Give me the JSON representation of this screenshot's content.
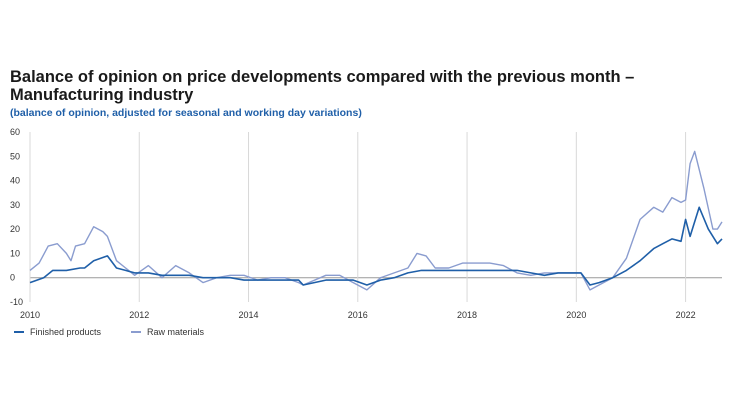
{
  "title": "Balance of opinion on price developments compared with the previous month – Manufacturing industry",
  "subtitle": "(balance of opinion, adjusted for seasonal and working day variations)",
  "chart_data": {
    "type": "line",
    "ylim": [
      -10,
      60
    ],
    "yticks": [
      -10,
      0,
      10,
      20,
      30,
      40,
      50,
      60
    ],
    "xlim": [
      "2010-01",
      "2022-09"
    ],
    "xticks": [
      "2010",
      "2012",
      "2014",
      "2016",
      "2018",
      "2020",
      "2022"
    ],
    "grid": "vertical at year ticks; horizontal zero line",
    "legend_position": "bottom-left",
    "series": [
      {
        "name": "Finished products",
        "color": "#1f5fa8",
        "points": [
          [
            "2010-01",
            -2
          ],
          [
            "2010-04",
            0
          ],
          [
            "2010-06",
            3
          ],
          [
            "2010-09",
            3
          ],
          [
            "2010-12",
            4
          ],
          [
            "2011-01",
            4
          ],
          [
            "2011-03",
            7
          ],
          [
            "2011-06",
            9
          ],
          [
            "2011-08",
            4
          ],
          [
            "2011-10",
            3
          ],
          [
            "2011-12",
            2
          ],
          [
            "2012-03",
            2
          ],
          [
            "2012-06",
            1
          ],
          [
            "2012-09",
            1
          ],
          [
            "2012-12",
            1
          ],
          [
            "2013-03",
            0
          ],
          [
            "2013-06",
            0
          ],
          [
            "2013-09",
            0
          ],
          [
            "2013-12",
            -1
          ],
          [
            "2014-03",
            -1
          ],
          [
            "2014-06",
            -1
          ],
          [
            "2014-09",
            -1
          ],
          [
            "2014-12",
            -1
          ],
          [
            "2015-01",
            -3
          ],
          [
            "2015-06",
            -1
          ],
          [
            "2015-12",
            -1
          ],
          [
            "2016-03",
            -3
          ],
          [
            "2016-06",
            -1
          ],
          [
            "2016-09",
            0
          ],
          [
            "2016-12",
            2
          ],
          [
            "2017-03",
            3
          ],
          [
            "2017-06",
            3
          ],
          [
            "2017-09",
            3
          ],
          [
            "2017-12",
            3
          ],
          [
            "2018-03",
            3
          ],
          [
            "2018-06",
            3
          ],
          [
            "2018-09",
            3
          ],
          [
            "2018-12",
            3
          ],
          [
            "2019-03",
            2
          ],
          [
            "2019-06",
            1
          ],
          [
            "2019-09",
            2
          ],
          [
            "2019-12",
            2
          ],
          [
            "2020-02",
            2
          ],
          [
            "2020-04",
            -3
          ],
          [
            "2020-06",
            -2
          ],
          [
            "2020-09",
            0
          ],
          [
            "2020-12",
            3
          ],
          [
            "2021-03",
            7
          ],
          [
            "2021-06",
            12
          ],
          [
            "2021-08",
            14
          ],
          [
            "2021-10",
            16
          ],
          [
            "2021-12",
            15
          ],
          [
            "2022-01",
            24
          ],
          [
            "2022-02",
            17
          ],
          [
            "2022-04",
            29
          ],
          [
            "2022-06",
            20
          ],
          [
            "2022-08",
            14
          ],
          [
            "2022-09",
            16
          ]
        ]
      },
      {
        "name": "Raw materials",
        "color": "#8a9ccf",
        "points": [
          [
            "2010-01",
            3
          ],
          [
            "2010-03",
            6
          ],
          [
            "2010-05",
            13
          ],
          [
            "2010-07",
            14
          ],
          [
            "2010-09",
            10
          ],
          [
            "2010-10",
            7
          ],
          [
            "2010-11",
            13
          ],
          [
            "2011-01",
            14
          ],
          [
            "2011-03",
            21
          ],
          [
            "2011-05",
            19
          ],
          [
            "2011-06",
            17
          ],
          [
            "2011-08",
            7
          ],
          [
            "2011-10",
            4
          ],
          [
            "2011-12",
            1
          ],
          [
            "2012-03",
            5
          ],
          [
            "2012-06",
            0
          ],
          [
            "2012-09",
            5
          ],
          [
            "2012-12",
            2
          ],
          [
            "2013-03",
            -2
          ],
          [
            "2013-06",
            0
          ],
          [
            "2013-09",
            1
          ],
          [
            "2013-12",
            1
          ],
          [
            "2014-03",
            -1
          ],
          [
            "2014-06",
            0
          ],
          [
            "2014-09",
            0
          ],
          [
            "2014-12",
            -2
          ],
          [
            "2015-01",
            -3
          ],
          [
            "2015-06",
            1
          ],
          [
            "2015-09",
            1
          ],
          [
            "2015-12",
            -2
          ],
          [
            "2016-03",
            -5
          ],
          [
            "2016-06",
            0
          ],
          [
            "2016-09",
            2
          ],
          [
            "2016-12",
            4
          ],
          [
            "2017-02",
            10
          ],
          [
            "2017-04",
            9
          ],
          [
            "2017-06",
            4
          ],
          [
            "2017-09",
            4
          ],
          [
            "2017-12",
            6
          ],
          [
            "2018-03",
            6
          ],
          [
            "2018-06",
            6
          ],
          [
            "2018-09",
            5
          ],
          [
            "2018-12",
            2
          ],
          [
            "2019-03",
            1
          ],
          [
            "2019-06",
            2
          ],
          [
            "2019-09",
            2
          ],
          [
            "2019-12",
            2
          ],
          [
            "2020-02",
            2
          ],
          [
            "2020-04",
            -5
          ],
          [
            "2020-06",
            -3
          ],
          [
            "2020-09",
            0
          ],
          [
            "2020-12",
            8
          ],
          [
            "2021-03",
            24
          ],
          [
            "2021-06",
            29
          ],
          [
            "2021-08",
            27
          ],
          [
            "2021-10",
            33
          ],
          [
            "2021-12",
            31
          ],
          [
            "2022-01",
            32
          ],
          [
            "2022-02",
            47
          ],
          [
            "2022-03",
            52
          ],
          [
            "2022-05",
            37
          ],
          [
            "2022-07",
            20
          ],
          [
            "2022-08",
            20
          ],
          [
            "2022-09",
            23
          ]
        ]
      }
    ]
  }
}
